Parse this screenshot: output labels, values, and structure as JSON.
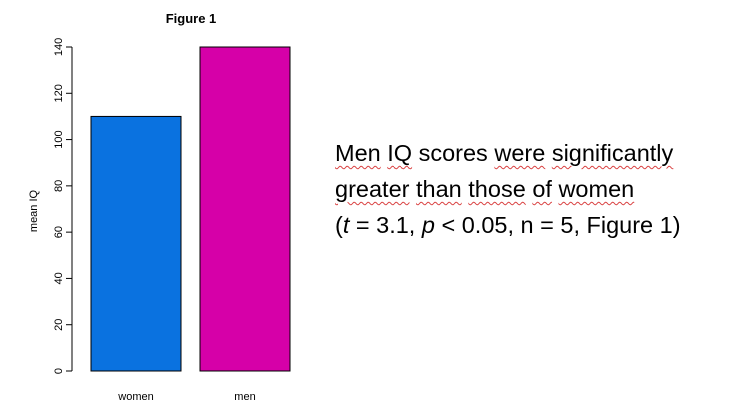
{
  "chart_data": {
    "type": "bar",
    "title": "Figure 1",
    "ylabel": "mean IQ",
    "xlabel": "",
    "categories": [
      "women",
      "men"
    ],
    "values": [
      110,
      140
    ],
    "colors": [
      "#0a72e0",
      "#d600a8"
    ],
    "ylim": [
      0,
      140
    ],
    "yticks": [
      0,
      20,
      40,
      60,
      80,
      100,
      120,
      140
    ],
    "grid": false
  },
  "caption": {
    "w1": "Men",
    "w2": "IQ",
    "w3": "scores",
    "w4": "were",
    "w5": "significantly",
    "line2_w1": "greater",
    "line2_w2": "than",
    "line2_w3": "those",
    "line2_w4": "of",
    "line2_w5": "women",
    "stat_open": "(",
    "stat_t": "t",
    "stat_t_val": " = 3.1, ",
    "stat_p": "p",
    "stat_p_val": " < 0.05, n = 5, Figure 1)"
  }
}
